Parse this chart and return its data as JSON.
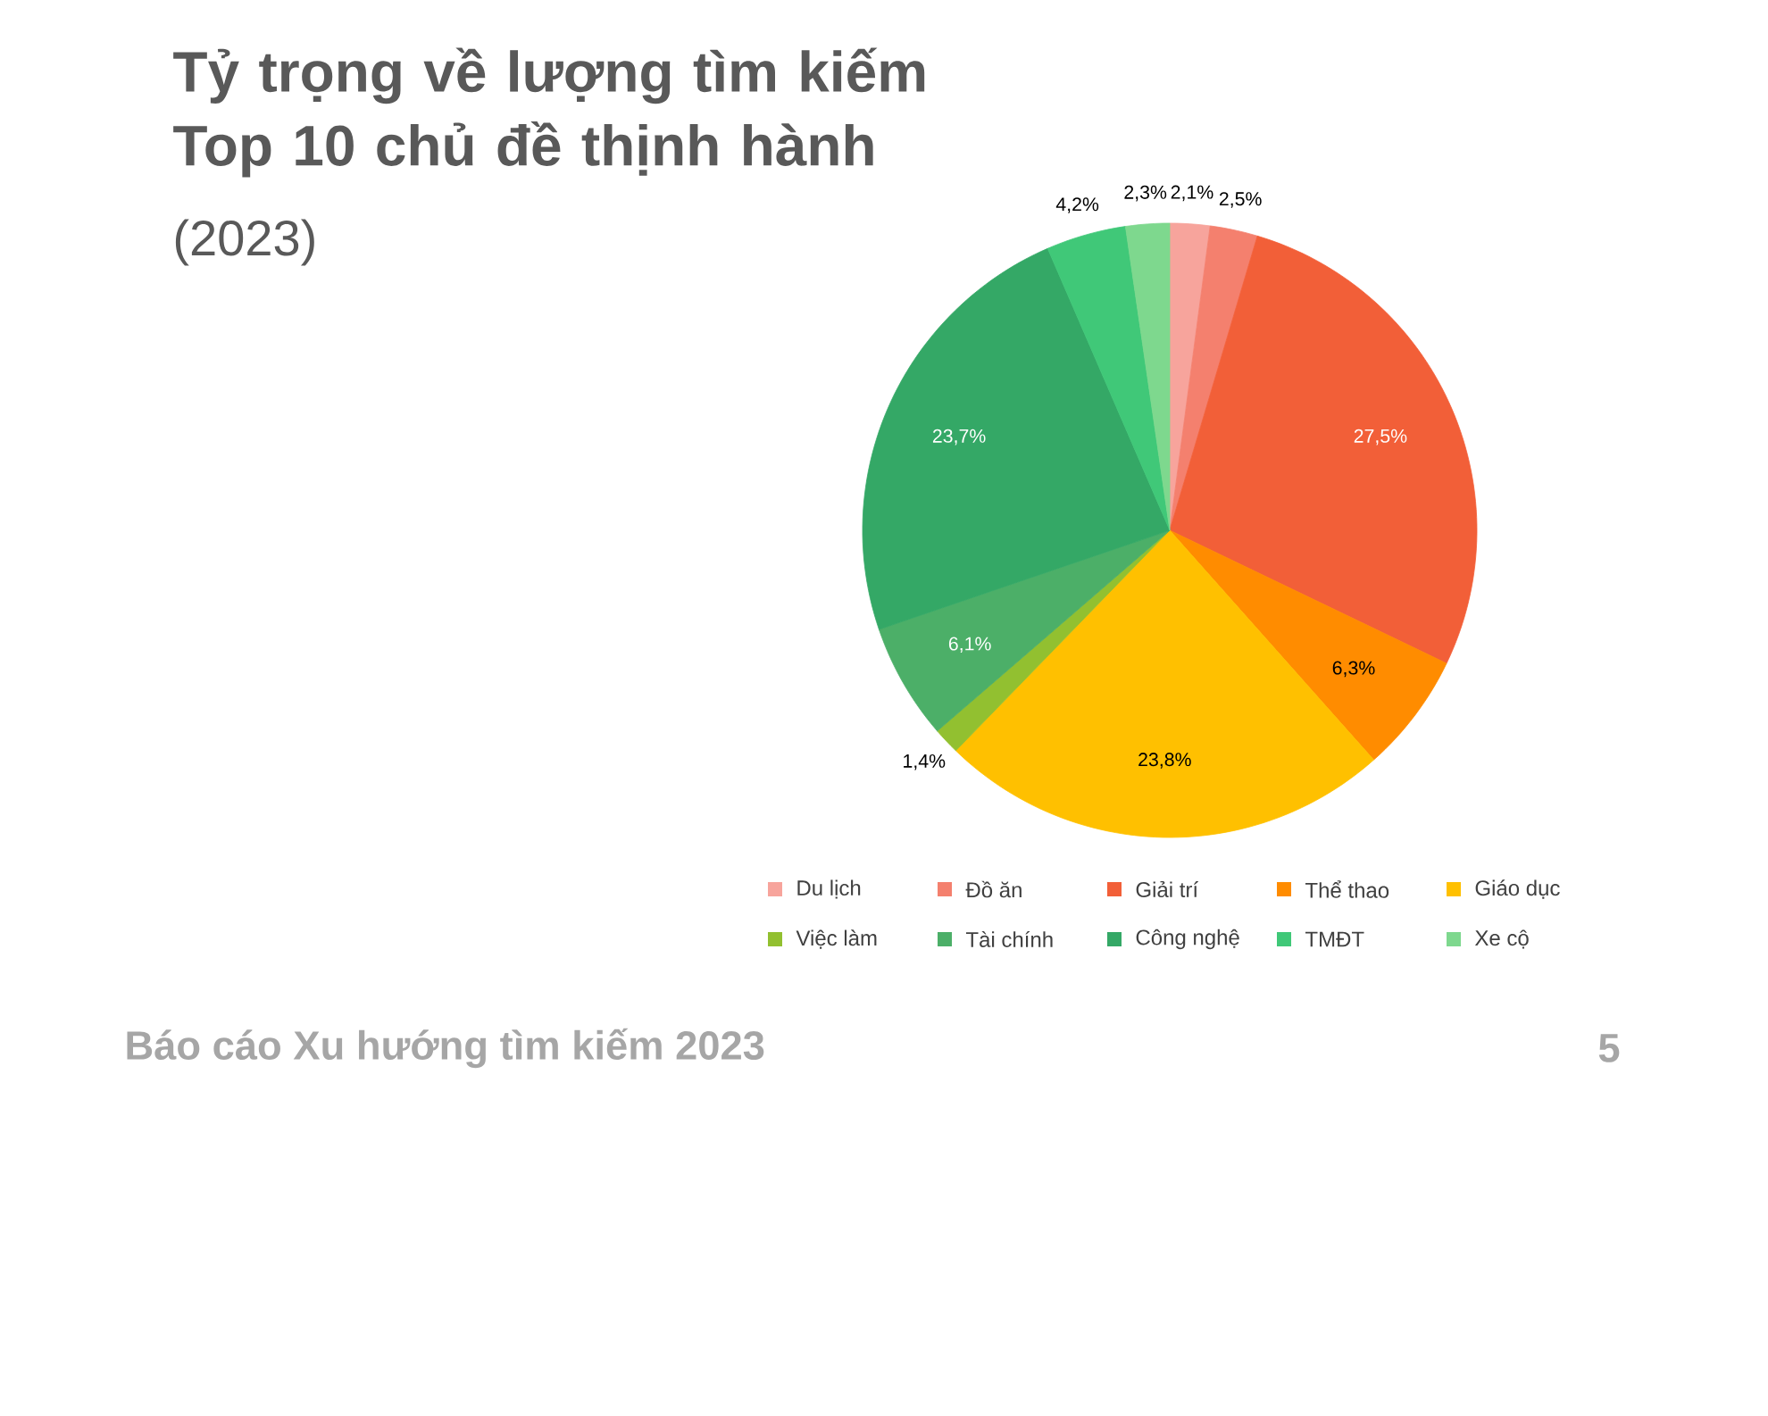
{
  "chart_data": {
    "type": "pie",
    "title": "Tỷ trọng về lượng tìm kiếm Top 10 chủ đề thịnh hành",
    "subtitle": "(2023)",
    "categories": [
      "Du lịch",
      "Đồ ăn",
      "Giải trí",
      "Thể thao",
      "Giáo dục",
      "Việc làm",
      "Tài chính",
      "Công nghệ",
      "TMĐT",
      "Xe cộ"
    ],
    "values": [
      2.1,
      2.5,
      27.5,
      6.3,
      23.8,
      1.4,
      6.1,
      23.7,
      4.2,
      2.3
    ],
    "value_labels": [
      "2,1%",
      "2,5%",
      "27,5%",
      "6,3%",
      "23,8%",
      "1,4%",
      "6,1%",
      "23,7%",
      "4,2%",
      "2,3%"
    ],
    "colors": [
      "#f7a49c",
      "#f4806e",
      "#f25f38",
      "#ff8c00",
      "#ffc000",
      "#92c030",
      "#4caf68",
      "#34a866",
      "#40c878",
      "#7ed88e"
    ],
    "legend": "bottom",
    "annotations": [
      "Báo cáo Xu hướng tìm kiếm 2023",
      "5"
    ]
  }
}
